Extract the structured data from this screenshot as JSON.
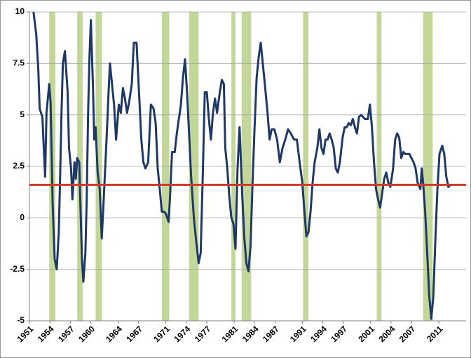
{
  "chart_data": {
    "type": "line",
    "color": "#1f3864",
    "reference_line": 1.6,
    "reference_color": "#d03a2a",
    "recession_color": "#c4d79b",
    "recessions": [
      [
        1953.9,
        1954.8
      ],
      [
        1958.0,
        1958.8
      ],
      [
        1960.7,
        1961.6
      ],
      [
        1970.4,
        1971.5
      ],
      [
        1974.4,
        1975.8
      ],
      [
        1980.6,
        1981.2
      ],
      [
        1982.1,
        1983.5
      ],
      [
        1991.1,
        1991.9
      ],
      [
        2001.9,
        2002.6
      ],
      [
        2008.7,
        2010.1
      ]
    ],
    "xlim": [
      1951,
      2015
    ],
    "xticks": [
      1951,
      1954,
      1957,
      1960,
      1964,
      1967,
      1971,
      1974,
      1977,
      1981,
      1984,
      1987,
      1991,
      1994,
      1997,
      2001,
      2004,
      2007,
      2011
    ],
    "ylim": [
      -5,
      10
    ],
    "yticks": [
      -5,
      -2.5,
      0,
      2.5,
      5,
      7.5,
      10
    ],
    "grid": true,
    "x": [
      1951.6,
      1952.0,
      1952.3,
      1952.5,
      1952.9,
      1953.1,
      1953.3,
      1953.5,
      1953.9,
      1954.1,
      1954.4,
      1954.7,
      1955.0,
      1955.3,
      1955.5,
      1955.7,
      1955.9,
      1956.2,
      1956.6,
      1956.8,
      1957.1,
      1957.3,
      1957.6,
      1957.8,
      1958.0,
      1958.3,
      1958.5,
      1958.7,
      1958.9,
      1959.2,
      1959.4,
      1959.6,
      1959.8,
      1960.0,
      1960.3,
      1960.5,
      1960.7,
      1961.0,
      1961.3,
      1961.6,
      1961.8,
      1962.0,
      1962.3,
      1962.6,
      1962.8,
      1963.1,
      1963.4,
      1963.7,
      1964.1,
      1964.4,
      1964.7,
      1965.0,
      1965.3,
      1965.6,
      1966.0,
      1966.3,
      1966.7,
      1967.0,
      1967.4,
      1967.7,
      1968.0,
      1968.4,
      1968.8,
      1969.2,
      1969.5,
      1969.8,
      1970.1,
      1970.4,
      1970.7,
      1971.0,
      1971.4,
      1971.6,
      1971.9,
      1972.3,
      1972.6,
      1972.9,
      1973.2,
      1973.5,
      1973.8,
      1974.1,
      1974.4,
      1974.7,
      1975.1,
      1975.4,
      1975.8,
      1976.1,
      1976.4,
      1976.7,
      1977.0,
      1977.3,
      1977.6,
      1977.9,
      1978.2,
      1978.5,
      1978.9,
      1979.2,
      1979.5,
      1979.7,
      1980.0,
      1980.3,
      1980.6,
      1980.9,
      1981.2,
      1981.5,
      1981.8,
      1982.2,
      1982.5,
      1982.8,
      1983.1,
      1983.4,
      1983.7,
      1984.0,
      1984.3,
      1984.6,
      1984.9,
      1985.2,
      1985.5,
      1985.9,
      1986.2,
      1986.5,
      1986.9,
      1987.3,
      1987.7,
      1988.1,
      1988.5,
      1988.9,
      1989.3,
      1989.8,
      1990.2,
      1990.6,
      1991.0,
      1991.3,
      1991.6,
      1991.9,
      1992.2,
      1992.5,
      1992.8,
      1993.2,
      1993.5,
      1993.8,
      1994.1,
      1994.4,
      1994.7,
      1995.0,
      1995.3,
      1995.6,
      1995.9,
      1996.2,
      1996.5,
      1996.9,
      1997.2,
      1997.5,
      1997.8,
      1998.1,
      1998.4,
      1998.7,
      1999.0,
      1999.3,
      1999.6,
      1999.9,
      2000.2,
      2000.6,
      2000.9,
      2001.2,
      2001.5,
      2001.8,
      2002.1,
      2002.4,
      2002.7,
      2003.0,
      2003.3,
      2003.6,
      2003.9,
      2004.3,
      2004.6,
      2004.9,
      2005.2,
      2005.5,
      2005.8,
      2006.1,
      2006.4,
      2006.7,
      2007.0,
      2007.3,
      2007.6,
      2007.9,
      2008.3,
      2008.5,
      2008.7,
      2009.0,
      2009.3,
      2009.6,
      2009.9,
      2010.2,
      2010.5,
      2010.8,
      2011.1,
      2011.5,
      2011.8,
      2012.1,
      2012.4,
      2012.7
    ],
    "values": [
      10,
      8.9,
      7.2,
      5.3,
      4.9,
      3.4,
      2.0,
      5.1,
      6.5,
      5.6,
      0.7,
      -2.0,
      -2.5,
      -0.7,
      2.0,
      5.1,
      7.5,
      8.1,
      6.1,
      3.4,
      2.4,
      0.9,
      2.7,
      1.9,
      2.9,
      2.7,
      0.3,
      -2.0,
      -3.1,
      -1.7,
      1.0,
      5.1,
      7.8,
      9.6,
      6.5,
      3.8,
      4.4,
      2.2,
      1.4,
      -1.0,
      0.3,
      1.7,
      3.8,
      6.1,
      7.5,
      6.5,
      5.5,
      3.8,
      5.5,
      5.1,
      6.3,
      5.8,
      5.1,
      5.6,
      6.5,
      8.5,
      8.5,
      6.5,
      3.8,
      2.7,
      2.4,
      2.7,
      5.5,
      5.3,
      4.6,
      2.4,
      1.4,
      0.3,
      0.3,
      0.2,
      -0.2,
      1.0,
      3.2,
      3.2,
      4.1,
      4.8,
      5.5,
      6.8,
      7.7,
      6.1,
      4.1,
      2.0,
      0,
      -1.0,
      -2.2,
      -1.7,
      2.0,
      6.1,
      6.1,
      4.8,
      3.8,
      5.1,
      5.8,
      5.1,
      6.1,
      6.7,
      6.5,
      3.4,
      2.4,
      1.0,
      0,
      -0.3,
      -1.5,
      2.4,
      4.4,
      1.0,
      -1.0,
      -2.2,
      -2.6,
      -1.4,
      1.7,
      4.4,
      6.8,
      7.8,
      8.5,
      7.5,
      6.5,
      5.1,
      3.8,
      4.3,
      4.3,
      3.8,
      2.7,
      3.4,
      3.8,
      4.3,
      4.1,
      3.8,
      3.8,
      2.7,
      1.7,
      0.3,
      -0.9,
      -0.7,
      0.3,
      1.7,
      2.7,
      3.4,
      4.3,
      3.4,
      3.1,
      3.8,
      3.8,
      4.1,
      3.8,
      3.4,
      2.4,
      2.2,
      2.7,
      3.9,
      4.4,
      4.4,
      4.6,
      4.5,
      4.8,
      4.4,
      4.1,
      4.9,
      5.0,
      4.9,
      4.8,
      4.8,
      5.5,
      4.4,
      2.7,
      1.4,
      0.9,
      0.5,
      1.2,
      1.9,
      2.2,
      1.7,
      1.5,
      2.4,
      3.8,
      4.1,
      3.9,
      2.9,
      3.2,
      3.1,
      3.1,
      3.1,
      2.9,
      2.7,
      2.4,
      1.7,
      1.4,
      2.4,
      1.7,
      0.3,
      -1.7,
      -3.8,
      -4.9,
      -3.8,
      -1.0,
      1.4,
      3.1,
      3.5,
      3.1,
      2.0,
      1.5,
      1.6
    ]
  }
}
